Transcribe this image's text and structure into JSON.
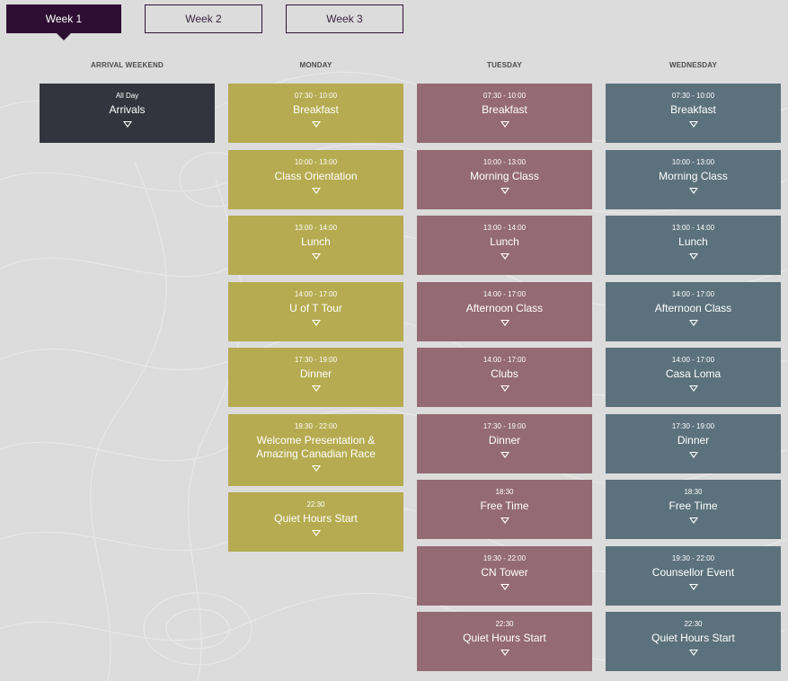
{
  "tabs": [
    {
      "label": "Week 1",
      "active": true
    },
    {
      "label": "Week 2",
      "active": false
    },
    {
      "label": "Week 3",
      "active": false
    }
  ],
  "colors": {
    "active_tab": "#2e0f33",
    "arrival": "#34343f",
    "monday": "#b6ab50",
    "tuesday": "#946a74",
    "wednesday": "#5b717c",
    "background": "#dcdcdc"
  },
  "days": [
    {
      "name": "ARRIVAL WEEKEND",
      "events": [
        {
          "time": "All Day",
          "title": "Arrivals"
        }
      ]
    },
    {
      "name": "MONDAY",
      "events": [
        {
          "time": "07:30 - 10:00",
          "title": "Breakfast"
        },
        {
          "time": "10:00 - 13:00",
          "title": "Class Orientation"
        },
        {
          "time": "13:00 - 14:00",
          "title": "Lunch"
        },
        {
          "time": "14:00 - 17:00",
          "title": "U of T Tour"
        },
        {
          "time": "17:30 - 19:00",
          "title": "Dinner"
        },
        {
          "time": "19:30 - 22:00",
          "title": "Welcome Presentation & Amazing Canadian Race"
        },
        {
          "time": "22:30",
          "title": "Quiet Hours Start"
        }
      ]
    },
    {
      "name": "TUESDAY",
      "events": [
        {
          "time": "07:30 - 10:00",
          "title": "Breakfast"
        },
        {
          "time": "10:00 - 13:00",
          "title": "Morning Class"
        },
        {
          "time": "13:00 - 14:00",
          "title": "Lunch"
        },
        {
          "time": "14:00 - 17:00",
          "title": "Afternoon Class"
        },
        {
          "time": "14:00 - 17:00",
          "title": "Clubs"
        },
        {
          "time": "17:30 - 19:00",
          "title": "Dinner"
        },
        {
          "time": "18:30",
          "title": "Free Time"
        },
        {
          "time": "19:30 - 22:00",
          "title": "CN Tower"
        },
        {
          "time": "22:30",
          "title": "Quiet Hours Start"
        }
      ]
    },
    {
      "name": "WEDNESDAY",
      "events": [
        {
          "time": "07:30 - 10:00",
          "title": "Breakfast"
        },
        {
          "time": "10:00 - 13:00",
          "title": "Morning Class"
        },
        {
          "time": "13:00 - 14:00",
          "title": "Lunch"
        },
        {
          "time": "14:00 - 17:00",
          "title": "Afternoon Class"
        },
        {
          "time": "14:00 - 17:00",
          "title": "Casa Loma"
        },
        {
          "time": "17:30 - 19:00",
          "title": "Dinner"
        },
        {
          "time": "18:30",
          "title": "Free Time"
        },
        {
          "time": "19:30 - 22:00",
          "title": "Counsellor Event"
        },
        {
          "time": "22:30",
          "title": "Quiet Hours Start"
        }
      ]
    }
  ]
}
